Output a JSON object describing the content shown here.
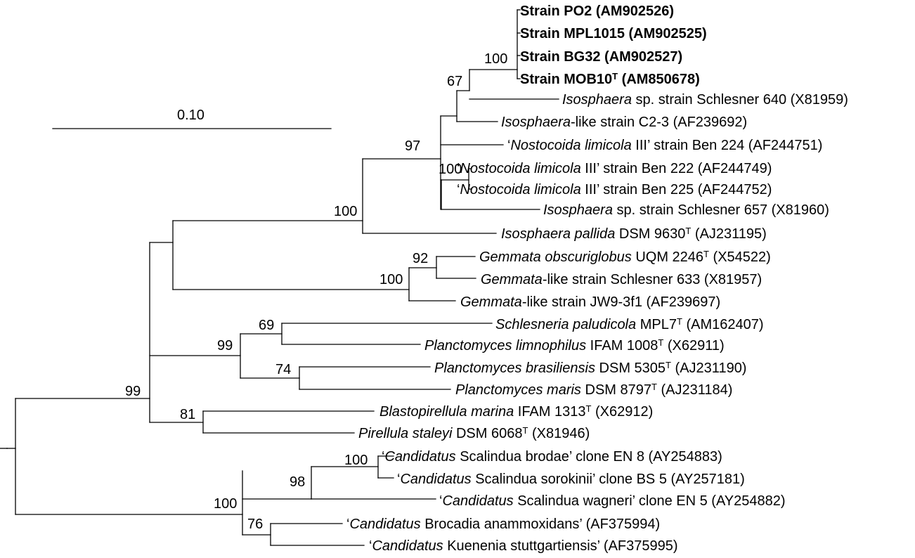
{
  "scale_bar": {
    "label": "0.10"
  },
  "taxa": [
    {
      "id": "po2",
      "parts": [
        {
          "t": "Strain PO2 (AM902526)"
        }
      ],
      "bold": true
    },
    {
      "id": "mpl1015",
      "parts": [
        {
          "t": "Strain MPL1015 (AM902525)"
        }
      ],
      "bold": true
    },
    {
      "id": "bg32",
      "parts": [
        {
          "t": "Strain BG32 (AM902527)"
        }
      ],
      "bold": true
    },
    {
      "id": "mob10",
      "parts": [
        {
          "t": "Strain MOB10"
        },
        {
          "t": "T",
          "sup": true
        },
        {
          "t": " (AM850678)"
        }
      ],
      "bold": true
    },
    {
      "id": "iso640",
      "parts": [
        {
          "t": "Isosphaera",
          "i": true
        },
        {
          "t": " sp. strain Schlesner 640 (X81959)"
        }
      ]
    },
    {
      "id": "isoc23",
      "parts": [
        {
          "t": "Isosphaera",
          "i": true
        },
        {
          "t": "-like strain C2-3 (AF239692)"
        }
      ]
    },
    {
      "id": "nos224",
      "parts": [
        {
          "t": "‘"
        },
        {
          "t": "Nostocoida limicola",
          "i": true
        },
        {
          "t": " III’ strain Ben 224 (AF244751)"
        }
      ]
    },
    {
      "id": "nos222",
      "parts": [
        {
          "t": "‘"
        },
        {
          "t": "Nostocoida limicola",
          "i": true
        },
        {
          "t": " III’ strain Ben 222 (AF244749)"
        }
      ]
    },
    {
      "id": "nos225",
      "parts": [
        {
          "t": "‘"
        },
        {
          "t": "Nostocoida limicola",
          "i": true
        },
        {
          "t": " III’ strain Ben 225 (AF244752)"
        }
      ]
    },
    {
      "id": "iso657",
      "parts": [
        {
          "t": "Isosphaera",
          "i": true
        },
        {
          "t": " sp. strain Schlesner 657 (X81960)"
        }
      ]
    },
    {
      "id": "isopal",
      "parts": [
        {
          "t": "Isosphaera pallida",
          "i": true
        },
        {
          "t": " DSM 9630"
        },
        {
          "t": "T",
          "sup": true
        },
        {
          "t": " (AJ231195)"
        }
      ]
    },
    {
      "id": "gemobs",
      "parts": [
        {
          "t": "Gemmata obscuriglobus",
          "i": true
        },
        {
          "t": " UQM 2246"
        },
        {
          "t": "T",
          "sup": true
        },
        {
          "t": " (X54522)"
        }
      ]
    },
    {
      "id": "gem633",
      "parts": [
        {
          "t": "Gemmata",
          "i": true
        },
        {
          "t": "-like strain Schlesner 633 (X81957)"
        }
      ]
    },
    {
      "id": "gemjw9",
      "parts": [
        {
          "t": "Gemmata",
          "i": true
        },
        {
          "t": "-like strain JW9-3f1 (AF239697)"
        }
      ]
    },
    {
      "id": "schpal",
      "parts": [
        {
          "t": "Schlesneria paludicola",
          "i": true
        },
        {
          "t": " MPL7"
        },
        {
          "t": "T",
          "sup": true
        },
        {
          "t": " (AM162407)"
        }
      ]
    },
    {
      "id": "pllim",
      "parts": [
        {
          "t": "Planctomyces limnophilus",
          "i": true
        },
        {
          "t": " IFAM 1008"
        },
        {
          "t": "T",
          "sup": true
        },
        {
          "t": " (X62911)"
        }
      ]
    },
    {
      "id": "plbra",
      "parts": [
        {
          "t": "Planctomyces brasiliensis",
          "i": true
        },
        {
          "t": " DSM 5305"
        },
        {
          "t": "T",
          "sup": true
        },
        {
          "t": " (AJ231190)"
        }
      ]
    },
    {
      "id": "plmar",
      "parts": [
        {
          "t": "Planctomyces maris",
          "i": true
        },
        {
          "t": " DSM 8797"
        },
        {
          "t": "T",
          "sup": true
        },
        {
          "t": " (AJ231184)"
        }
      ]
    },
    {
      "id": "blamar",
      "parts": [
        {
          "t": "Blastopirellula marina",
          "i": true
        },
        {
          "t": " IFAM 1313"
        },
        {
          "t": "T",
          "sup": true
        },
        {
          "t": " (X62912)"
        }
      ]
    },
    {
      "id": "pirsta",
      "parts": [
        {
          "t": "Pirellula staleyi",
          "i": true
        },
        {
          "t": " DSM 6068"
        },
        {
          "t": "T",
          "sup": true
        },
        {
          "t": " (X81946)"
        }
      ]
    },
    {
      "id": "scabro",
      "parts": [
        {
          "t": "‘"
        },
        {
          "t": "Candidatus",
          "i": true
        },
        {
          "t": " Scalindua brodae’ clone EN 8 (AY254883)"
        }
      ]
    },
    {
      "id": "scasor",
      "parts": [
        {
          "t": "‘"
        },
        {
          "t": "Candidatus",
          "i": true
        },
        {
          "t": " Scalindua sorokinii’ clone BS 5 (AY257181)"
        }
      ]
    },
    {
      "id": "scawag",
      "parts": [
        {
          "t": "‘"
        },
        {
          "t": "Candidatus",
          "i": true
        },
        {
          "t": " Scalindua wagneri’ clone EN 5 (AY254882)"
        }
      ]
    },
    {
      "id": "broana",
      "parts": [
        {
          "t": "‘"
        },
        {
          "t": "Candidatus",
          "i": true
        },
        {
          "t": " Brocadia anammoxidans’ (AF375994)"
        }
      ]
    },
    {
      "id": "kuestu",
      "parts": [
        {
          "t": "‘"
        },
        {
          "t": "Candidatus",
          "i": true
        },
        {
          "t": " Kuenenia stuttgartiensis’ (AF375995)"
        }
      ]
    }
  ],
  "bootstrap": {
    "n_strains": "100",
    "n_isosphaera": "67",
    "n_iso_group": "97",
    "n_nos": "100",
    "n_iso_all": "100",
    "n_gem_pair": "92",
    "n_gem_all": "100",
    "n_sch": "69",
    "n_pl_all": "99",
    "n_pl_bm": "74",
    "n_pir": "81",
    "n_plancto": "99",
    "n_scalindua": "100",
    "n_sca_all": "98",
    "n_anammox": "100",
    "n_bro_kue": "76"
  }
}
